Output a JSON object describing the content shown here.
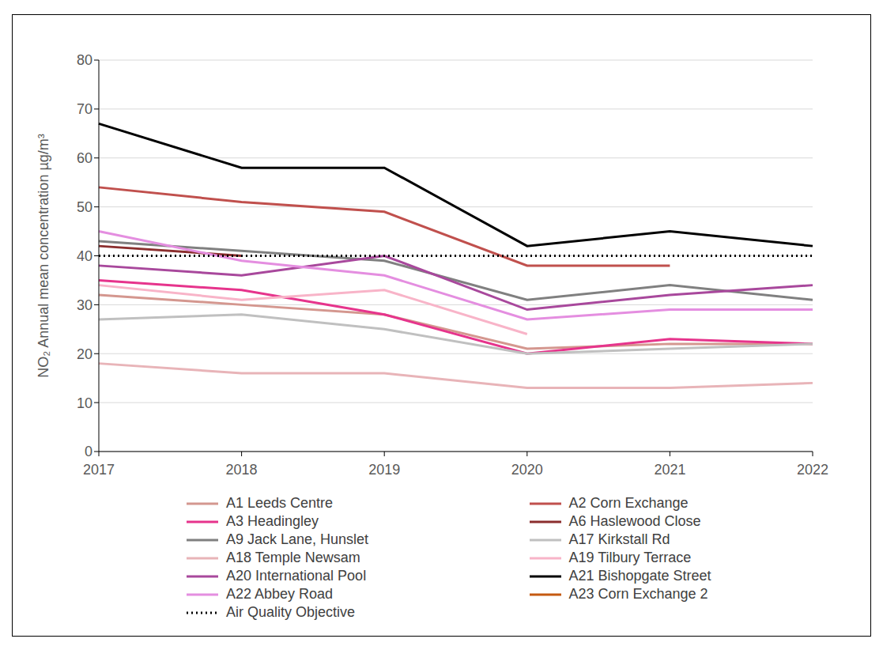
{
  "chart_data": {
    "type": "line",
    "y_label": "NO₂ Annual mean concentration µg/m³",
    "categories": [
      "2017",
      "2018",
      "2019",
      "2020",
      "2021",
      "2022"
    ],
    "ylim": [
      0,
      80
    ],
    "yticks": [
      0,
      10,
      20,
      30,
      40,
      50,
      60,
      70,
      80
    ],
    "grid": true,
    "legend": "bottom",
    "series": [
      {
        "name": "A1 Leeds Centre",
        "color": "#d4978f",
        "values": [
          32,
          30,
          28,
          21,
          22,
          22
        ]
      },
      {
        "name": "A2 Corn Exchange",
        "color": "#c0504d",
        "values": [
          54,
          51,
          49,
          38,
          38,
          null
        ]
      },
      {
        "name": "A3 Headingley",
        "color": "#e6348c",
        "values": [
          35,
          33,
          28,
          20,
          23,
          22
        ]
      },
      {
        "name": "A6 Haslewood Close",
        "color": "#8b2e2e",
        "values": [
          42,
          40,
          null,
          null,
          null,
          null
        ]
      },
      {
        "name": "A9 Jack Lane, Hunslet",
        "color": "#808080",
        "values": [
          43,
          41,
          39,
          31,
          34,
          31
        ]
      },
      {
        "name": "A17 Kirkstall Rd",
        "color": "#c0c0c0",
        "values": [
          27,
          28,
          25,
          20,
          21,
          22
        ]
      },
      {
        "name": "A18 Temple Newsam",
        "color": "#e8b4b8",
        "values": [
          18,
          16,
          16,
          13,
          13,
          14
        ]
      },
      {
        "name": "A19 Tilbury Terrace",
        "color": "#f8b4c8",
        "values": [
          34,
          31,
          33,
          24,
          null,
          null
        ]
      },
      {
        "name": "A20 International Pool",
        "color": "#a8489c",
        "values": [
          38,
          36,
          40,
          29,
          32,
          34
        ]
      },
      {
        "name": "A21 Bishopgate Street",
        "color": "#000000",
        "values": [
          67,
          58,
          58,
          42,
          45,
          42
        ]
      },
      {
        "name": "A22 Abbey Road",
        "color": "#e48ee0",
        "values": [
          45,
          39,
          36,
          27,
          29,
          29
        ]
      },
      {
        "name": "A23 Corn Exchange 2",
        "color": "#c55a11",
        "values": [
          null,
          null,
          null,
          null,
          null,
          null
        ]
      },
      {
        "name": "Air Quality Objective",
        "color": "#000000",
        "line_style": "dotted",
        "values": [
          40,
          40,
          40,
          40,
          40,
          40
        ]
      }
    ]
  }
}
